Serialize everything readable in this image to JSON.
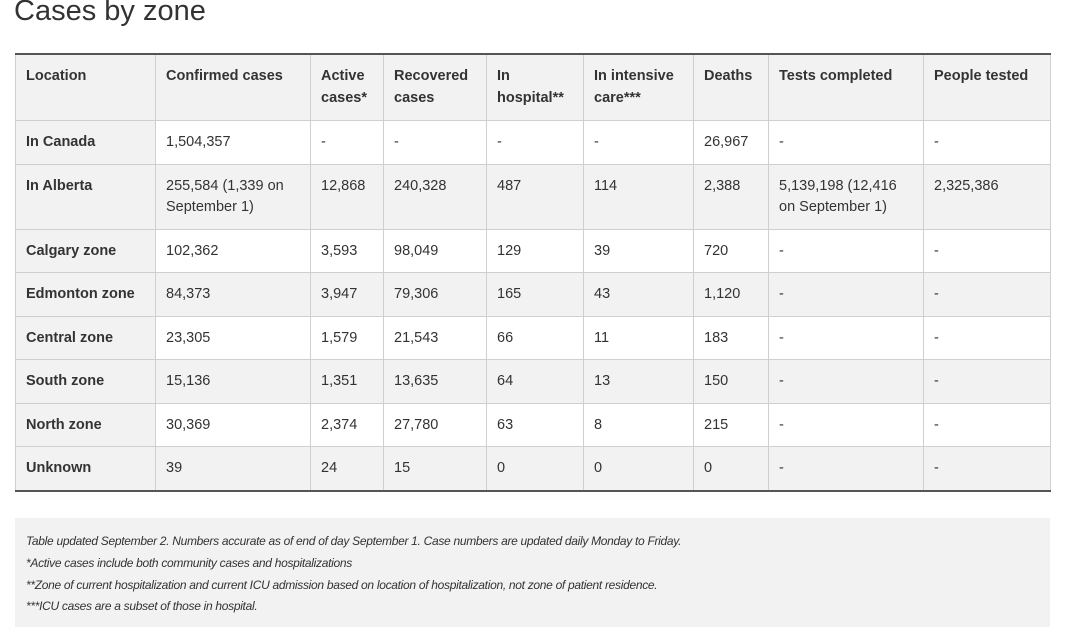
{
  "title": "Cases by zone",
  "table": {
    "headers": [
      "Location",
      "Confirmed cases",
      "Active cases*",
      "Recovered cases",
      "In hospital**",
      "In intensive care***",
      "Deaths",
      "Tests completed",
      "People tested"
    ],
    "rows": [
      [
        "In Canada",
        "1,504,357",
        "-",
        "-",
        "-",
        "-",
        "26,967",
        "-",
        "-"
      ],
      [
        "In Alberta",
        "255,584 (1,339 on September 1)",
        "12,868",
        "240,328",
        "487",
        "114",
        "2,388",
        "5,139,198 (12,416 on September 1)",
        "2,325,386"
      ],
      [
        "Calgary zone",
        "102,362",
        "3,593",
        "98,049",
        "129",
        "39",
        "720",
        "-",
        "-"
      ],
      [
        "Edmonton zone",
        "84,373",
        "3,947",
        "79,306",
        "165",
        "43",
        "1,120",
        "-",
        "-"
      ],
      [
        "Central zone",
        "23,305",
        "1,579",
        "21,543",
        "66",
        "11",
        "183",
        "-",
        "-"
      ],
      [
        "South zone",
        "15,136",
        "1,351",
        "13,635",
        "64",
        "13",
        "150",
        "-",
        "-"
      ],
      [
        "North zone",
        "30,369",
        "2,374",
        "27,780",
        "63",
        "8",
        "215",
        "-",
        "-"
      ],
      [
        "Unknown",
        "39",
        "24",
        "15",
        "0",
        "0",
        "0",
        "-",
        "-"
      ]
    ]
  },
  "notes": [
    "Table updated September 2. Numbers accurate as of end of day September 1. Case numbers are updated daily Monday to Friday.",
    "*Active cases include both community cases and hospitalizations",
    "**Zone of current hospitalization and current ICU admission based on location of hospitalization, not zone of patient residence.",
    "***ICU cases are a subset of those in hospital."
  ],
  "colors": {
    "text": "#333333",
    "band": "#f2f2f2",
    "border": "#cfcfcf",
    "rule": "#555555"
  }
}
